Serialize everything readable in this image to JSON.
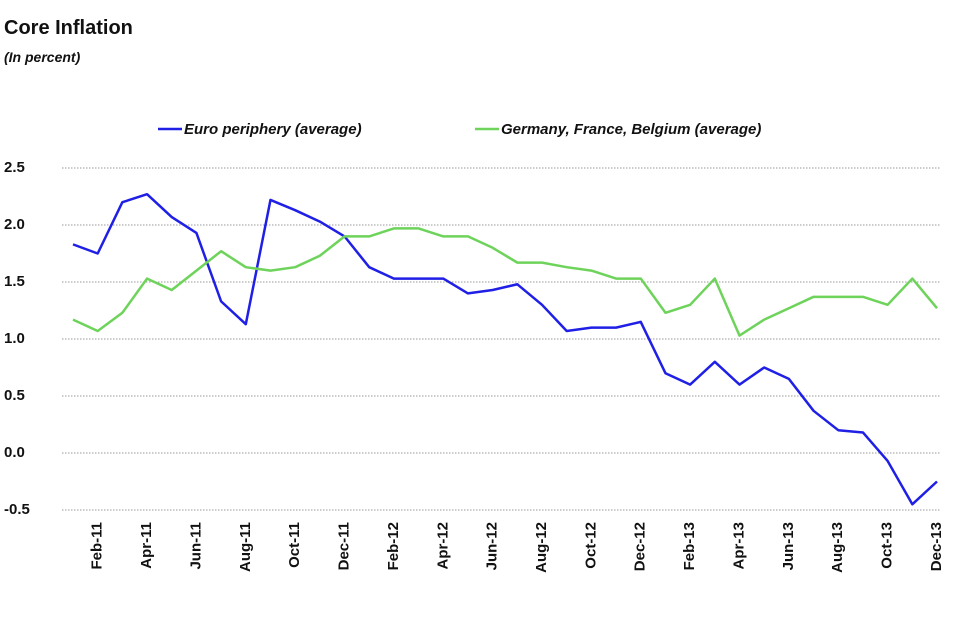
{
  "chart_data": {
    "type": "line",
    "title": "Core Inflation",
    "subtitle": "(In percent)",
    "categories": [
      null,
      "Feb-11",
      null,
      "Apr-11",
      null,
      "Jun-11",
      null,
      "Aug-11",
      null,
      "Oct-11",
      null,
      "Dec-11",
      null,
      "Feb-12",
      null,
      "Apr-12",
      null,
      "Jun-12",
      null,
      "Aug-12",
      null,
      "Oct-12",
      null,
      "Dec-12",
      null,
      "Feb-13",
      null,
      "Apr-13",
      null,
      "Jun-13",
      null,
      "Aug-13",
      null,
      "Oct-13",
      null,
      "Dec-13"
    ],
    "series": [
      {
        "name": "Euro periphery (average)",
        "color": "#1f1fe6",
        "values": [
          1.83,
          1.75,
          2.2,
          2.27,
          2.07,
          1.93,
          1.33,
          1.13,
          2.22,
          2.13,
          2.03,
          1.9,
          1.63,
          1.53,
          1.53,
          1.53,
          1.4,
          1.43,
          1.48,
          1.3,
          1.07,
          1.1,
          1.1,
          1.15,
          0.7,
          0.6,
          0.8,
          0.6,
          0.75,
          0.65,
          0.37,
          0.2,
          0.18,
          -0.07,
          -0.45,
          -0.25
        ]
      },
      {
        "name": "Germany, France, Belgium (average)",
        "color": "#6ed35a",
        "values": [
          1.17,
          1.07,
          1.23,
          1.53,
          1.43,
          1.6,
          1.77,
          1.63,
          1.6,
          1.63,
          1.73,
          1.9,
          1.9,
          1.97,
          1.97,
          1.9,
          1.9,
          1.8,
          1.67,
          1.67,
          1.63,
          1.6,
          1.53,
          1.53,
          1.23,
          1.3,
          1.53,
          1.03,
          1.17,
          1.27,
          1.37,
          1.37,
          1.37,
          1.3,
          1.53,
          1.27
        ]
      }
    ],
    "ylim": [
      -0.5,
      2.5
    ],
    "yticks": [
      2.5,
      {
        "value": 2,
        "label": "2.0"
      },
      1.5,
      {
        "value": 1,
        "label": "1.0"
      },
      0.5,
      {
        "value": 0,
        "label": "0.0"
      },
      -0.5
    ],
    "grid": true,
    "legend": "top"
  }
}
